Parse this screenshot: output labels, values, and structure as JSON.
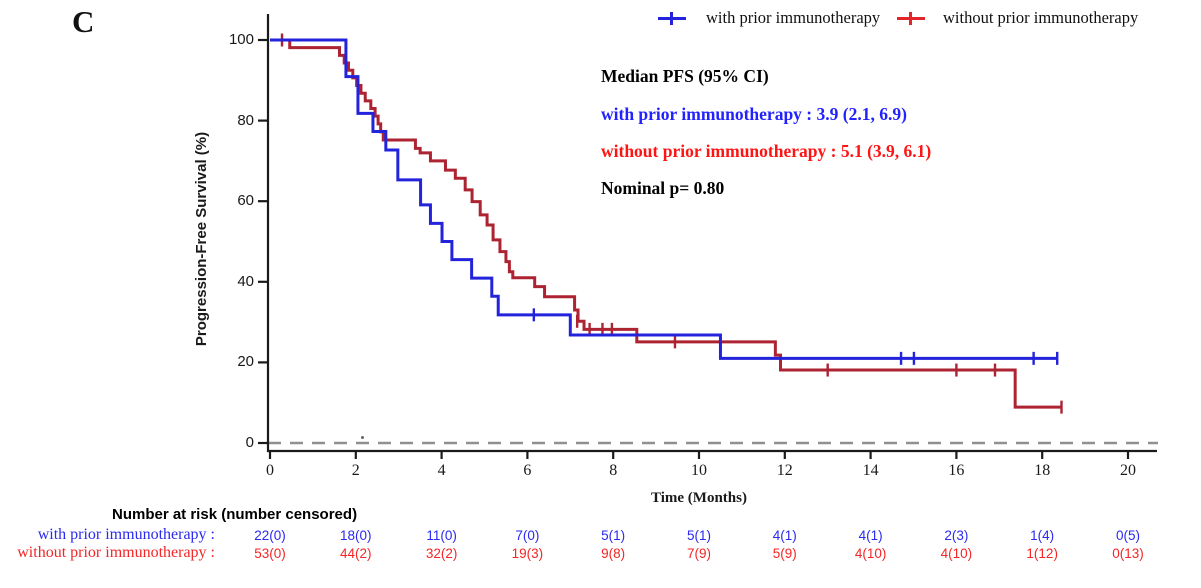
{
  "panel_label": "C",
  "colors": {
    "curve_blue": "#2323DC",
    "curve_red": "#AD2332",
    "legend_red": "#E2242B",
    "text_blue": "#2929F0",
    "text_red": "#F52525",
    "annotation_blue": "#2222FF",
    "annotation_red": "#FF1414",
    "dashed_reference": "#909090",
    "axis": "#1A1A1A"
  },
  "legend": {
    "entries": [
      {
        "label": "with prior immunotherapy",
        "color": "#2323DC"
      },
      {
        "label": "without prior immunotherapy",
        "color": "#E2242B"
      }
    ]
  },
  "annotation": {
    "title": "Median PFS (95% CI)",
    "with_line": "with prior immunotherapy : 3.9 (2.1, 6.9)",
    "without_line": "without prior immunotherapy : 5.1 (3.9, 6.1)",
    "pvalue": "Nominal p= 0.80"
  },
  "axes": {
    "y_title": "Progression-Free Survival (%)",
    "x_title": "Time (Months)"
  },
  "risk_table": {
    "header": "Number at risk (number censored)",
    "rows": [
      {
        "label": "with prior immunotherapy :",
        "values": [
          "22(0)",
          "18(0)",
          "11(0)",
          "7(0)",
          "5(1)",
          "5(1)",
          "4(1)",
          "4(1)",
          "2(3)",
          "1(4)",
          "0(5)"
        ]
      },
      {
        "label": "without prior immunotherapy :",
        "values": [
          "53(0)",
          "44(2)",
          "32(2)",
          "19(3)",
          "9(8)",
          "7(9)",
          "5(9)",
          "4(10)",
          "4(10)",
          "1(12)",
          "0(13)"
        ]
      }
    ]
  },
  "chart_data": {
    "type": "line",
    "subtype": "kaplan-meier-step",
    "title": "",
    "xlabel": "Time (Months)",
    "ylabel": "Progression-Free Survival (%)",
    "xlim": [
      0,
      20
    ],
    "ylim": [
      0,
      100
    ],
    "x_ticks": [
      0,
      2,
      4,
      6,
      8,
      10,
      12,
      14,
      16,
      18,
      20
    ],
    "y_ticks": [
      0,
      20,
      40,
      60,
      80,
      100
    ],
    "grid": false,
    "legend_position": "top-right",
    "reference_line": {
      "y": 0,
      "style": "dashed",
      "color": "#909090"
    },
    "median_pfs": {
      "with_prior_immunotherapy": "3.9 (2.1, 6.9)",
      "without_prior_immunotherapy": "5.1 (3.9, 6.1)",
      "nominal_p": "0.80"
    },
    "series": [
      {
        "name": "with prior immunotherapy",
        "color": "#2323DC",
        "start": [
          0,
          100
        ],
        "drops": [
          [
            1.77,
            90.9
          ],
          [
            2.05,
            81.8
          ],
          [
            2.4,
            77.3
          ],
          [
            2.7,
            72.7
          ],
          [
            2.98,
            65.3
          ],
          [
            3.51,
            59.1
          ],
          [
            3.74,
            54.5
          ],
          [
            4.01,
            50
          ],
          [
            4.24,
            45.5
          ],
          [
            4.7,
            40.9
          ],
          [
            5.17,
            36.4
          ],
          [
            5.32,
            31.8
          ],
          [
            7.0,
            26.8
          ],
          [
            10.5,
            21
          ]
        ],
        "end_time": 18.35,
        "censor_marks": [
          [
            6.15,
            31.8
          ],
          [
            14.71,
            21
          ],
          [
            15.01,
            21
          ],
          [
            17.8,
            21
          ],
          [
            18.35,
            21
          ]
        ]
      },
      {
        "name": "without prior immunotherapy",
        "color": "#AD2332",
        "start": [
          0,
          100
        ],
        "drops": [
          [
            0.46,
            98.1
          ],
          [
            1.62,
            96.2
          ],
          [
            1.73,
            94.3
          ],
          [
            1.83,
            92.5
          ],
          [
            1.93,
            90.6
          ],
          [
            2.02,
            88.7
          ],
          [
            2.12,
            86.8
          ],
          [
            2.22,
            84.9
          ],
          [
            2.35,
            83
          ],
          [
            2.45,
            81.1
          ],
          [
            2.52,
            79.2
          ],
          [
            2.58,
            77.2
          ],
          [
            2.64,
            75.2
          ],
          [
            3.39,
            73.1
          ],
          [
            3.5,
            72
          ],
          [
            3.74,
            70
          ],
          [
            4.09,
            67.7
          ],
          [
            4.32,
            65.7
          ],
          [
            4.55,
            62.8
          ],
          [
            4.71,
            59.9
          ],
          [
            4.9,
            56.6
          ],
          [
            5.06,
            54.1
          ],
          [
            5.2,
            50.4
          ],
          [
            5.36,
            47.5
          ],
          [
            5.5,
            45
          ],
          [
            5.58,
            42.5
          ],
          [
            5.66,
            41
          ],
          [
            6.17,
            38.8
          ],
          [
            6.4,
            36.3
          ],
          [
            7.1,
            33
          ],
          [
            7.18,
            30.2
          ],
          [
            7.32,
            28.2
          ],
          [
            8.55,
            25.1
          ],
          [
            11.78,
            21.8
          ],
          [
            11.9,
            18.1
          ],
          [
            17.37,
            8.9
          ]
        ],
        "end_time": 18.45,
        "censor_marks": [
          [
            0.28,
            100
          ],
          [
            2.05,
            88.7
          ],
          [
            7.16,
            30.2
          ],
          [
            7.45,
            28.2
          ],
          [
            7.75,
            28.2
          ],
          [
            7.97,
            28.2
          ],
          [
            9.44,
            25.1
          ],
          [
            13.0,
            18.1
          ],
          [
            16.0,
            18.1
          ],
          [
            16.9,
            18.1
          ],
          [
            18.45,
            8.9
          ]
        ]
      }
    ],
    "number_at_risk": {
      "times": [
        0,
        2,
        4,
        6,
        8,
        10,
        12,
        14,
        16,
        18,
        20
      ],
      "with_prior_immunotherapy": [
        "22(0)",
        "18(0)",
        "11(0)",
        "7(0)",
        "5(1)",
        "5(1)",
        "4(1)",
        "4(1)",
        "2(3)",
        "1(4)",
        "0(5)"
      ],
      "without_prior_immunotherapy": [
        "53(0)",
        "44(2)",
        "32(2)",
        "19(3)",
        "9(8)",
        "7(9)",
        "5(9)",
        "4(10)",
        "4(10)",
        "1(12)",
        "0(13)"
      ]
    }
  }
}
